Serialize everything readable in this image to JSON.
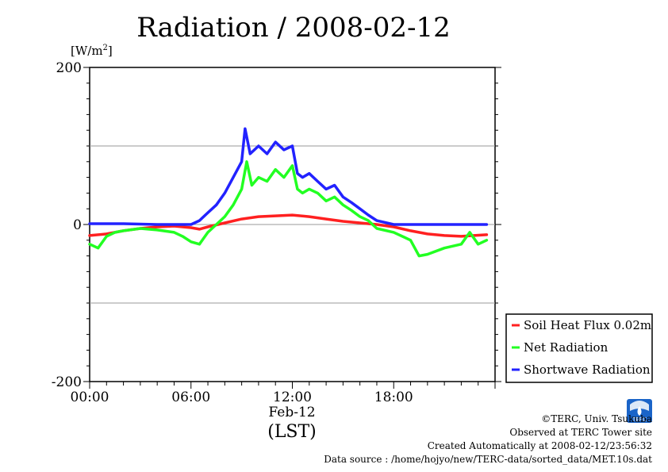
{
  "chart_data": {
    "type": "line",
    "title": "Radiation / 2008-02-12",
    "ylabel_unit": "[W/m",
    "ylabel_sup": "2",
    "ylabel_close": "]",
    "ylim": [
      -200,
      200
    ],
    "yticks": [
      200,
      0,
      -200
    ],
    "ytick_labels": [
      "200",
      "0",
      "-200"
    ],
    "xlim": [
      0,
      24
    ],
    "xticks": [
      0,
      6,
      12,
      18
    ],
    "xtick_labels": [
      "00:00",
      "06:00",
      "12:00",
      "18:00"
    ],
    "date_label": "Feb-12",
    "xlabel": "(LST)",
    "grid": true,
    "legend_position": "right-bottom",
    "series": [
      {
        "name": "Soil Heat Flux 0.02m",
        "color": "#ff2020",
        "x": [
          0,
          1,
          2,
          3,
          4,
          5,
          6,
          6.5,
          7,
          8,
          9,
          10,
          11,
          12,
          13,
          14,
          15,
          16,
          17,
          18,
          19,
          20,
          21,
          22,
          23.5
        ],
        "y": [
          -14,
          -12,
          -8,
          -5,
          -3,
          -2,
          -4,
          -6,
          -3,
          2,
          7,
          10,
          11,
          12,
          10,
          7,
          4,
          2,
          0,
          -3,
          -8,
          -12,
          -14,
          -15,
          -13
        ]
      },
      {
        "name": "Net Radiation",
        "color": "#22ff22",
        "x": [
          0,
          0.5,
          1,
          1.5,
          2,
          3,
          4,
          5,
          5.5,
          6,
          6.5,
          7,
          7.5,
          8,
          8.5,
          9,
          9.3,
          9.6,
          10,
          10.5,
          11,
          11.5,
          12,
          12.3,
          12.6,
          13,
          13.5,
          14,
          14.5,
          15,
          15.5,
          16,
          16.5,
          17,
          18,
          19,
          19.5,
          20,
          21,
          22,
          22.5,
          23,
          23.5
        ],
        "y": [
          -25,
          -30,
          -15,
          -10,
          -8,
          -5,
          -7,
          -10,
          -15,
          -22,
          -25,
          -10,
          0,
          10,
          25,
          45,
          80,
          50,
          60,
          55,
          70,
          60,
          75,
          45,
          40,
          45,
          40,
          30,
          35,
          25,
          18,
          10,
          5,
          -5,
          -10,
          -20,
          -40,
          -38,
          -30,
          -25,
          -10,
          -25,
          -20
        ]
      },
      {
        "name": "Shortwave Radiation",
        "color": "#2222ff",
        "x": [
          0,
          2,
          4,
          6,
          6.5,
          7,
          7.5,
          8,
          8.5,
          9,
          9.2,
          9.5,
          10,
          10.5,
          11,
          11.5,
          12,
          12.3,
          12.6,
          13,
          13.5,
          14,
          14.5,
          15,
          15.5,
          16,
          16.5,
          17,
          18,
          20,
          22,
          23.5
        ],
        "y": [
          1,
          1,
          0,
          0,
          5,
          15,
          25,
          40,
          60,
          80,
          122,
          90,
          100,
          90,
          105,
          95,
          100,
          65,
          60,
          65,
          55,
          45,
          50,
          35,
          28,
          20,
          12,
          5,
          0,
          0,
          0,
          0
        ]
      }
    ]
  },
  "credits": {
    "copyright": "©TERC, Univ. Tsukuba",
    "observed": "Observed at TERC Tower site",
    "created": "Created Automatically at 2008-02-12/23:56:32",
    "source": "Data source : /home/hojyo/new/TERC-data/sorted_data/MET.10s.dat"
  },
  "logo": {
    "text": "TERC",
    "color": "#1a64c8"
  }
}
